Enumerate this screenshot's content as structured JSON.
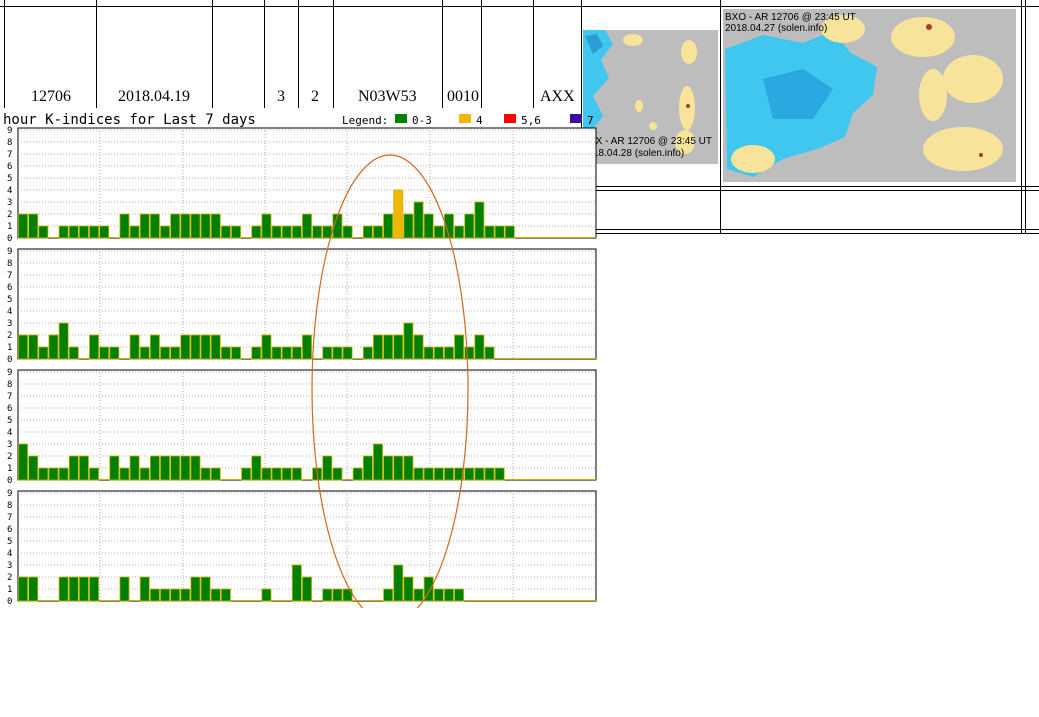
{
  "table": {
    "row": {
      "region": "12706",
      "date": "2018.04.19",
      "spots": "3",
      "extent": "2",
      "location": "N03W53",
      "area": "0010",
      "class": "AXX"
    }
  },
  "images": {
    "left_caption_line1": "XX - AR 12706 @ 23:45 UT",
    "left_caption_line2": "18.04.28 (solen.info)",
    "right_caption_line1": "BXO - AR 12706 @ 23:45 UT",
    "right_caption_line2": "2018.04.27 (solen.info)"
  },
  "chart_data": {
    "type": "bar",
    "title": "hour K-indices for Last 7 days",
    "legend": {
      "label": "Legend:",
      "placement": "top-right",
      "entries": [
        {
          "label": "0-3",
          "color": "#008000"
        },
        {
          "label": "4",
          "color": "#f2b705"
        },
        {
          "label": "5,6",
          "color": "#ff0000"
        },
        {
          "label": "7",
          "color": "#3a0ca3"
        }
      ]
    },
    "ylim": [
      0,
      9
    ],
    "yticks": [
      "0",
      "1",
      "2",
      "3",
      "4",
      "5",
      "6",
      "7",
      "8",
      "9"
    ],
    "grid": true,
    "colors": {
      "low": "#008000",
      "k4": "#f2b705",
      "bar_edge": "#c8b400"
    },
    "panels": [
      {
        "values": [
          2,
          2,
          1,
          0,
          1,
          1,
          1,
          1,
          1,
          0,
          2,
          1,
          2,
          2,
          1,
          2,
          2,
          2,
          2,
          2,
          1,
          1,
          0,
          1,
          2,
          1,
          1,
          1,
          2,
          1,
          1,
          2,
          1,
          0,
          1,
          1,
          2,
          4,
          2,
          3,
          2,
          1,
          2,
          1,
          2,
          3,
          1,
          1,
          1,
          0,
          0,
          0,
          0,
          0,
          0,
          0,
          0
        ]
      },
      {
        "values": [
          2,
          2,
          1,
          2,
          3,
          1,
          0,
          2,
          1,
          1,
          0,
          2,
          1,
          2,
          1,
          1,
          2,
          2,
          2,
          2,
          1,
          1,
          0,
          1,
          2,
          1,
          1,
          1,
          2,
          0,
          1,
          1,
          1,
          0,
          1,
          2,
          2,
          2,
          3,
          2,
          1,
          1,
          1,
          2,
          1,
          2,
          1,
          0,
          0,
          0,
          0,
          0,
          0,
          0,
          0,
          0,
          0
        ]
      },
      {
        "values": [
          3,
          2,
          1,
          1,
          1,
          2,
          2,
          1,
          0,
          2,
          1,
          2,
          1,
          2,
          2,
          2,
          2,
          2,
          1,
          1,
          0,
          0,
          1,
          2,
          1,
          1,
          1,
          1,
          0,
          1,
          2,
          1,
          0,
          1,
          2,
          3,
          2,
          2,
          2,
          1,
          1,
          1,
          1,
          1,
          1,
          1,
          1,
          1,
          0,
          0,
          0,
          0,
          0,
          0,
          0,
          0,
          0
        ]
      },
      {
        "values": [
          2,
          2,
          0,
          0,
          2,
          2,
          2,
          2,
          0,
          0,
          2,
          0,
          2,
          1,
          1,
          1,
          1,
          2,
          2,
          1,
          1,
          0,
          0,
          0,
          1,
          0,
          0,
          3,
          2,
          0,
          1,
          1,
          1,
          0,
          0,
          0,
          1,
          3,
          2,
          1,
          2,
          1,
          1,
          1,
          0,
          0,
          0,
          0,
          0,
          0,
          0,
          0,
          0,
          0,
          0,
          0,
          0
        ]
      }
    ]
  }
}
